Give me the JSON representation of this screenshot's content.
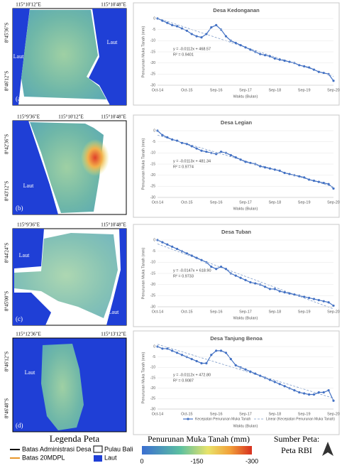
{
  "maps": [
    {
      "tag": "(a)",
      "top_labels": [
        "115°10'12\"E",
        "115°10'48\"E"
      ],
      "left_labels": [
        "8°45'36\"S",
        "8°46'12\"S"
      ],
      "sea_labels": [
        "Laut",
        "Laut"
      ]
    },
    {
      "tag": "(b)",
      "top_labels": [
        "115°9'36\"E",
        "115°10'12\"E",
        "115°10'48\"E"
      ],
      "left_labels": [
        "8°42'36\"S",
        "8°43'12\"S"
      ],
      "sea_labels": [
        "Laut"
      ]
    },
    {
      "tag": "(c)",
      "top_labels": [
        "115°9'36\"E",
        "115°10'48\"E"
      ],
      "left_labels": [
        "8°44'24\"S",
        "8°45'00\"S"
      ],
      "sea_labels": [
        "Laut",
        "Laut"
      ]
    },
    {
      "tag": "(d)",
      "top_labels": [
        "115°12'36\"E",
        "115°13'12\"E"
      ],
      "left_labels": [
        "8°46'12\"S",
        "8°46'48\"S"
      ],
      "sea_labels": [
        "Laut"
      ]
    }
  ],
  "chart_data": [
    {
      "type": "line",
      "title": "Desa Kedonganan",
      "categories": [
        "Oct-14",
        null,
        null,
        null,
        null,
        null,
        "Oct-15",
        null,
        null,
        null,
        null,
        null,
        "Sep-16",
        null,
        null,
        null,
        null,
        null,
        "Sep-17",
        null,
        null,
        null,
        null,
        null,
        "Sep-18",
        null,
        null,
        null,
        null,
        null,
        "Sep-19",
        null,
        null,
        null,
        null,
        null,
        "Sep-20"
      ],
      "series": [
        {
          "color": "#4472c4",
          "values": [
            0,
            -1,
            -2,
            -3,
            -3.5,
            -4.5,
            -5.5,
            -7,
            -8,
            -8.5,
            -7,
            -4,
            -3,
            -5,
            -8,
            -10,
            -11,
            -12,
            -13,
            -14,
            -15,
            -16,
            -16.5,
            -17,
            -18,
            -18.5,
            -19,
            -19.5,
            -20,
            -21,
            -21.5,
            -22,
            -23,
            -24,
            -24.5,
            -25,
            -28
          ]
        }
      ],
      "ylim": [
        -30,
        0
      ],
      "yticks": [
        0,
        -5,
        -10,
        -15,
        -20,
        -25,
        -30
      ],
      "y_label": "Penurunan Muka Tanah (mm)",
      "x_label": "Waktu (Bulan)",
      "annotation": [
        "y = -0.0112x + 468.57",
        "R² = 0.9401"
      ]
    },
    {
      "type": "line",
      "title": "Desa Legian",
      "categories": [
        "Oct-14",
        null,
        null,
        null,
        null,
        null,
        "Oct-15",
        null,
        null,
        null,
        null,
        null,
        "Sep-16",
        null,
        null,
        null,
        null,
        null,
        "Sep-17",
        null,
        null,
        null,
        null,
        null,
        "Sep-18",
        null,
        null,
        null,
        null,
        null,
        "Sep-19",
        null,
        null,
        null,
        null,
        null,
        "Sep-20"
      ],
      "series": [
        {
          "color": "#4472c4",
          "values": [
            0,
            -2,
            -3,
            -4,
            -4.5,
            -5.5,
            -6,
            -7,
            -8,
            -9,
            -9.5,
            -10,
            -10.5,
            -9.5,
            -10,
            -11,
            -12,
            -13,
            -14,
            -14.5,
            -15,
            -16,
            -16.5,
            -17,
            -17.5,
            -18,
            -19,
            -19.5,
            -20,
            -20.5,
            -21,
            -22,
            -22.5,
            -23,
            -23.5,
            -24,
            -26
          ]
        }
      ],
      "ylim": [
        -30,
        0
      ],
      "yticks": [
        0,
        -5,
        -10,
        -15,
        -20,
        -25,
        -30
      ],
      "y_label": "Penurunan Muka Tanah (mm)",
      "x_label": "Waktu (Bulan)",
      "annotation": [
        "y = -0.0113x + 481.34",
        "R² = 0.9774"
      ]
    },
    {
      "type": "line",
      "title": "Desa Tuban",
      "categories": [
        "Oct-14",
        null,
        null,
        null,
        null,
        null,
        "Oct-15",
        null,
        null,
        null,
        null,
        null,
        "Sep-16",
        null,
        null,
        null,
        null,
        null,
        "Sep-17",
        null,
        null,
        null,
        null,
        null,
        "Sep-18",
        null,
        null,
        null,
        null,
        null,
        "Sep-19",
        null,
        null,
        null,
        null,
        null,
        "Sep-20"
      ],
      "series": [
        {
          "color": "#4472c4",
          "values": [
            0,
            -1,
            -2,
            -3,
            -4,
            -5,
            -6,
            -7,
            -8,
            -9,
            -10,
            -12,
            -13,
            -12,
            -13,
            -15,
            -16,
            -17,
            -18,
            -19,
            -19.5,
            -20,
            -21,
            -22,
            -22,
            -23,
            -23.5,
            -24,
            -24.5,
            -25,
            -25.5,
            -26,
            -26.5,
            -27,
            -27.5,
            -28,
            -29.5
          ]
        }
      ],
      "ylim": [
        -30,
        0
      ],
      "yticks": [
        0,
        -5,
        -10,
        -15,
        -20,
        -25,
        -30
      ],
      "y_label": "Penurunan Muka Tanah (mm)",
      "x_label": "Waktu (Bulan)",
      "annotation": [
        "y = -0.0147x + 618.90",
        "R² = 0.9733"
      ]
    },
    {
      "type": "line",
      "title": "Desa Tanjung Benoa",
      "categories": [
        "Oct-14",
        null,
        null,
        null,
        null,
        null,
        "Oct-15",
        null,
        null,
        null,
        null,
        null,
        "Sep-16",
        null,
        null,
        null,
        null,
        null,
        "Sep-17",
        null,
        null,
        null,
        null,
        null,
        "Sep-18",
        null,
        null,
        null,
        null,
        null,
        "Sep-19",
        null,
        null,
        null,
        null,
        null,
        "Sep-20"
      ],
      "series": [
        {
          "name": "Kecepatan Penurunan Muka Tanah",
          "color": "#4472c4",
          "values": [
            0,
            -1,
            -1,
            -2,
            -3,
            -4,
            -5,
            -6,
            -7,
            -8,
            -8,
            -4,
            -2,
            -2,
            -3,
            -6,
            -9,
            -10,
            -11,
            -12,
            -13,
            -14,
            -15,
            -16,
            -17,
            -18,
            -19,
            -20,
            -21,
            -22,
            -22.5,
            -23,
            -23,
            -22,
            -22,
            -21,
            -26
          ]
        }
      ],
      "trend_label": "Linear (Kecepatan Penurunan Muka Tanah)",
      "ylim": [
        -30,
        0
      ],
      "yticks": [
        0,
        -5,
        -10,
        -15,
        -20,
        -25,
        -30
      ],
      "y_label": "Penurunan Muka Tanah (mm)",
      "x_label": "Waktu (Bulan)",
      "annotation": [
        "y = -0.0112x + 472.80",
        "R² = 0.9087"
      ]
    }
  ],
  "legend": {
    "title": "Legenda Peta",
    "items": [
      "Batas Administrasi Desa",
      "Batas 20MDPL",
      "Pulau Bali",
      "Laut"
    ],
    "colorbar": {
      "title": "Penurunan Muka Tanah (mm)",
      "ticks": [
        0,
        -150,
        -300
      ]
    },
    "source": [
      "Sumber Peta:",
      "Peta RBI"
    ]
  }
}
